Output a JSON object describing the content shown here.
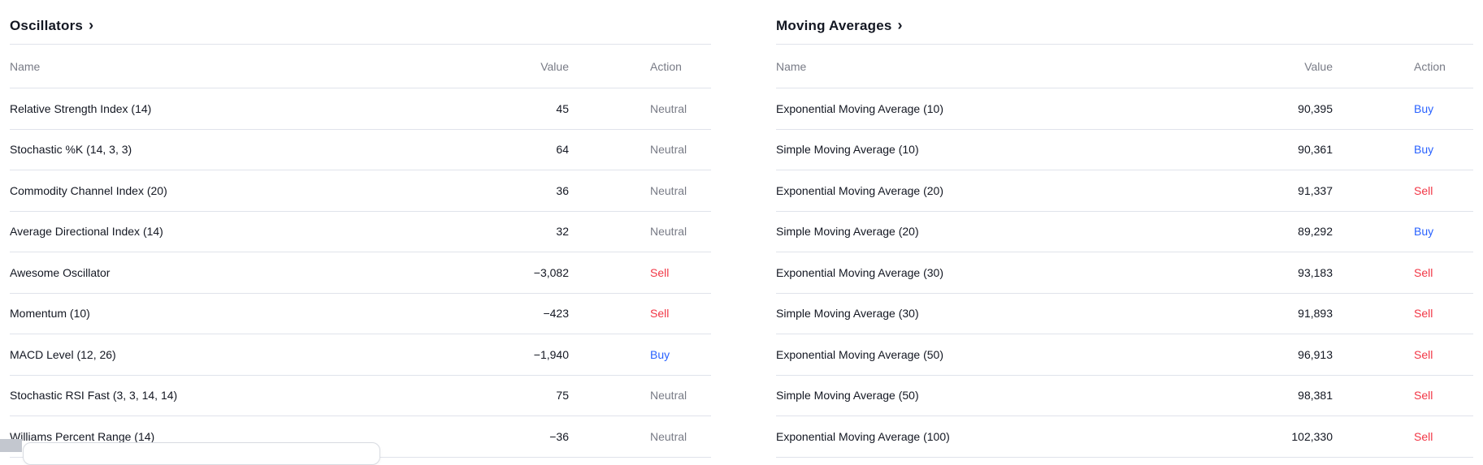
{
  "colors": {
    "buy": "#2962ff",
    "sell": "#f23645",
    "neutral": "#787b86",
    "text": "#131722",
    "muted": "#787b86",
    "divider": "#e0e3eb"
  },
  "sections": [
    {
      "title": "Oscillators",
      "chevron": "›",
      "columns": {
        "name": "Name",
        "value": "Value",
        "action": "Action"
      },
      "rows": [
        {
          "name": "Relative Strength Index (14)",
          "value": "45",
          "action": "Neutral",
          "action_type": "neutral"
        },
        {
          "name": "Stochastic %K (14, 3, 3)",
          "value": "64",
          "action": "Neutral",
          "action_type": "neutral"
        },
        {
          "name": "Commodity Channel Index (20)",
          "value": "36",
          "action": "Neutral",
          "action_type": "neutral"
        },
        {
          "name": "Average Directional Index (14)",
          "value": "32",
          "action": "Neutral",
          "action_type": "neutral"
        },
        {
          "name": "Awesome Oscillator",
          "value": "−3,082",
          "action": "Sell",
          "action_type": "sell"
        },
        {
          "name": "Momentum (10)",
          "value": "−423",
          "action": "Sell",
          "action_type": "sell"
        },
        {
          "name": "MACD Level (12, 26)",
          "value": "−1,940",
          "action": "Buy",
          "action_type": "buy"
        },
        {
          "name": "Stochastic RSI Fast (3, 3, 14, 14)",
          "value": "75",
          "action": "Neutral",
          "action_type": "neutral"
        },
        {
          "name": "Williams Percent Range (14)",
          "value": "−36",
          "action": "Neutral",
          "action_type": "neutral"
        }
      ]
    },
    {
      "title": "Moving Averages",
      "chevron": "›",
      "columns": {
        "name": "Name",
        "value": "Value",
        "action": "Action"
      },
      "rows": [
        {
          "name": "Exponential Moving Average (10)",
          "value": "90,395",
          "action": "Buy",
          "action_type": "buy"
        },
        {
          "name": "Simple Moving Average (10)",
          "value": "90,361",
          "action": "Buy",
          "action_type": "buy"
        },
        {
          "name": "Exponential Moving Average (20)",
          "value": "91,337",
          "action": "Sell",
          "action_type": "sell"
        },
        {
          "name": "Simple Moving Average (20)",
          "value": "89,292",
          "action": "Buy",
          "action_type": "buy"
        },
        {
          "name": "Exponential Moving Average (30)",
          "value": "93,183",
          "action": "Sell",
          "action_type": "sell"
        },
        {
          "name": "Simple Moving Average (30)",
          "value": "91,893",
          "action": "Sell",
          "action_type": "sell"
        },
        {
          "name": "Exponential Moving Average (50)",
          "value": "96,913",
          "action": "Sell",
          "action_type": "sell"
        },
        {
          "name": "Simple Moving Average (50)",
          "value": "98,381",
          "action": "Sell",
          "action_type": "sell"
        },
        {
          "name": "Exponential Moving Average (100)",
          "value": "102,330",
          "action": "Sell",
          "action_type": "sell"
        }
      ]
    }
  ]
}
